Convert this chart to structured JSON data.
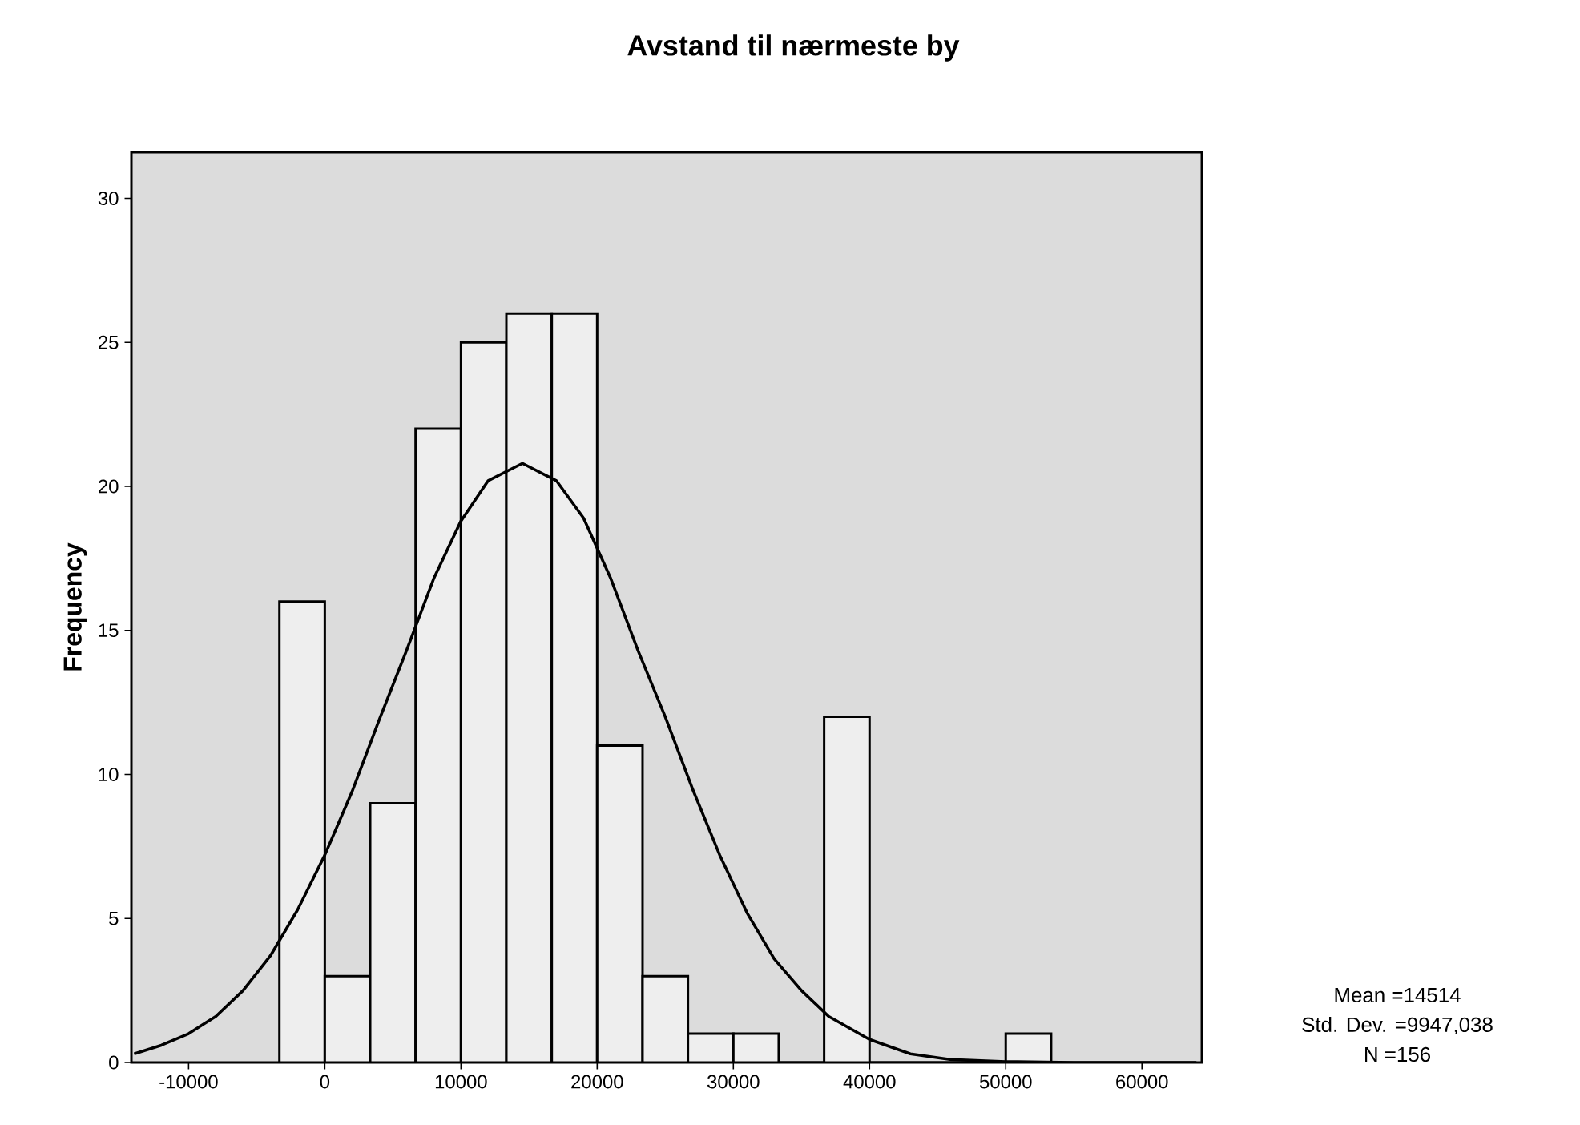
{
  "chart_data": {
    "type": "histogram",
    "title": "Avstand til nærmeste by",
    "ylabel": "Frequency",
    "bins": [
      -3333,
      0,
      3333,
      6667,
      10000,
      13333,
      16667,
      20000,
      23333,
      26667,
      30000,
      33333,
      36667,
      40000,
      43333,
      46667,
      50000,
      53333
    ],
    "values": [
      16,
      3,
      9,
      22,
      25,
      26,
      26,
      11,
      3,
      1,
      1,
      0,
      12,
      0,
      0,
      0,
      1
    ],
    "color": "#eeeeee",
    "series": [
      {
        "type": "line",
        "color": "#000000",
        "x": [
          -14000,
          -12000,
          -10000,
          -8000,
          -6000,
          -4000,
          -2000,
          0,
          2000,
          4000,
          6000,
          8000,
          10000,
          12000,
          14514,
          17000,
          19000,
          21000,
          23000,
          25000,
          27000,
          29000,
          31000,
          33000,
          35000,
          37000,
          40000,
          43000,
          46000,
          50000,
          55000,
          60000,
          64000
        ],
        "values": [
          0.3,
          0.6,
          1.0,
          1.6,
          2.5,
          3.7,
          5.3,
          7.2,
          9.4,
          11.9,
          14.3,
          16.8,
          18.8,
          20.2,
          20.8,
          20.2,
          18.9,
          16.8,
          14.3,
          12.0,
          9.5,
          7.2,
          5.2,
          3.6,
          2.5,
          1.6,
          0.8,
          0.3,
          0.1,
          0.03,
          0,
          0,
          0
        ]
      }
    ],
    "xlim": [
      -14200,
      64400
    ],
    "ylim": [
      0,
      31.6
    ],
    "xticks": [
      -10000,
      0,
      10000,
      20000,
      30000,
      40000,
      50000,
      60000
    ],
    "yticks": [
      0,
      5,
      10,
      15,
      20,
      25,
      30
    ],
    "annotations": [
      "Mean =14514",
      "Std. Dev. =9947,038",
      "N =156"
    ]
  }
}
